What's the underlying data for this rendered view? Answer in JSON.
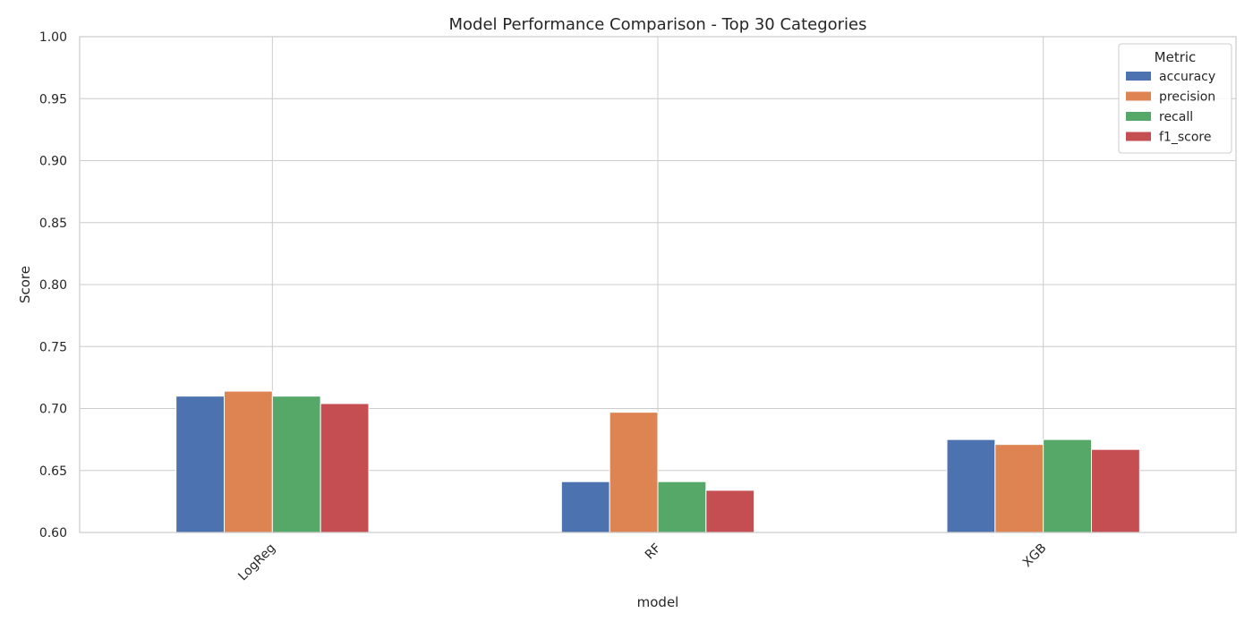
{
  "chart_data": {
    "type": "bar",
    "title": "Model Performance Comparison - Top 30 Categories",
    "xlabel": "model",
    "ylabel": "Score",
    "categories": [
      "LogReg",
      "RF",
      "XGB"
    ],
    "ylim": [
      0.6,
      1.0
    ],
    "yticks": [
      "0.60",
      "0.65",
      "0.70",
      "0.75",
      "0.80",
      "0.85",
      "0.90",
      "0.95",
      "1.00"
    ],
    "grid": true,
    "legend": {
      "title": "Metric",
      "position": "top-right"
    },
    "series": [
      {
        "name": "accuracy",
        "color": "#4c72b0",
        "values": [
          0.71,
          0.641,
          0.675
        ]
      },
      {
        "name": "precision",
        "color": "#dd8452",
        "values": [
          0.714,
          0.697,
          0.671
        ]
      },
      {
        "name": "recall",
        "color": "#55a868",
        "values": [
          0.71,
          0.641,
          0.675
        ]
      },
      {
        "name": "f1_score",
        "color": "#c44e52",
        "values": [
          0.704,
          0.634,
          0.667
        ]
      }
    ]
  }
}
